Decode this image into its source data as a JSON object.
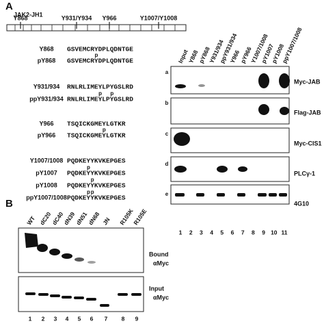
{
  "panel_a": {
    "label": "A",
    "protein": "JAK2-JH1",
    "sites": [
      "Y868",
      "Y931/Y934",
      "Y966",
      "Y1007/Y1008"
    ],
    "peptides": [
      {
        "name": "Y868",
        "sequence": "GSVEMCRYDPLQDNTGE"
      },
      {
        "name": "pY868",
        "sequence": "GSVEMCRYDPLQDNTGE",
        "marks": [
          "p"
        ]
      },
      {
        "name": "Y931/934",
        "sequence": "RNLRLIMEYLPYGSLRD"
      },
      {
        "name": "ppY931/934",
        "sequence": "RNLRLIMEYLPYGSLRD",
        "marks": [
          "p",
          "p"
        ]
      },
      {
        "name": "Y966",
        "sequence": "TSQICKGMEYLGTKR"
      },
      {
        "name": "pY966",
        "sequence": "TSQICKGMEYLGTKR",
        "marks": [
          "p"
        ]
      },
      {
        "name": "Y1007/1008",
        "sequence": "PQDKEYYKVKEPGES"
      },
      {
        "name": "pY1007",
        "sequence": "PQDKEYYKVKEPGES",
        "marks": [
          "p"
        ]
      },
      {
        "name": "pY1008",
        "sequence": "PQDKEYYKVKEPGES",
        "marks": [
          "p"
        ]
      },
      {
        "name": "ppY1007/1008",
        "sequence": "PQDKEYYKVKEPGES",
        "marks": [
          "p",
          "p"
        ]
      }
    ],
    "lanes": [
      "Input",
      "Y868",
      "pY868",
      "Y931/934",
      "ppY931/934",
      "Y966",
      "pY966",
      "Y1007/1008",
      "pY1007",
      "pY1008",
      "ppY1007/1008"
    ],
    "blots": [
      {
        "letter": "a",
        "label": "Myc-JAB"
      },
      {
        "letter": "b",
        "label": "Flag-JAB"
      },
      {
        "letter": "c",
        "label": "Myc-CIS1"
      },
      {
        "letter": "d",
        "label": "PLCγ-1"
      },
      {
        "letter": "e",
        "label": "4G10"
      }
    ],
    "lane_numbers": [
      1,
      2,
      3,
      4,
      5,
      6,
      7,
      8,
      9,
      10,
      11
    ]
  },
  "panel_b": {
    "label": "B",
    "lanes": [
      "WT",
      "dC20",
      "dC40",
      "dN39",
      "dN51",
      "dN68",
      "JN",
      "R105K",
      "R105E"
    ],
    "blots": [
      {
        "label": "Bound",
        "antibody": "αMyc"
      },
      {
        "label": "Input",
        "antibody": "αMyc"
      }
    ],
    "lane_numbers": [
      1,
      2,
      3,
      4,
      5,
      6,
      7,
      8,
      9
    ]
  }
}
